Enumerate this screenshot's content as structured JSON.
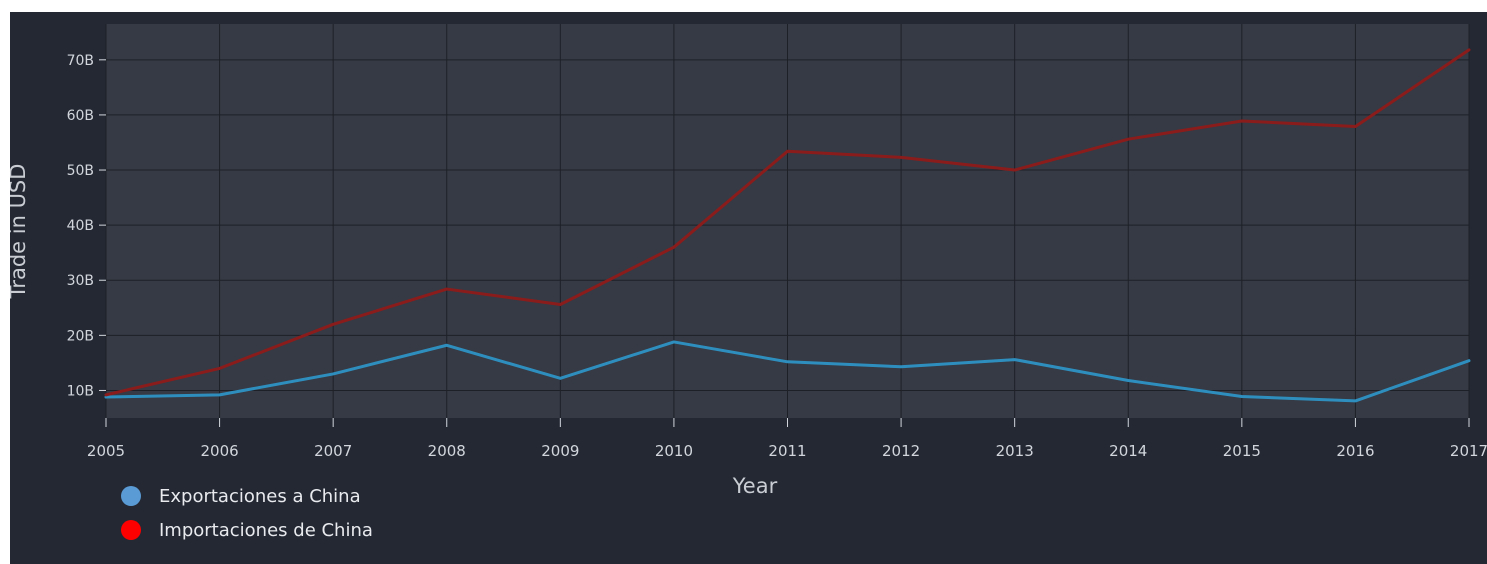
{
  "chart_data": {
    "type": "line",
    "title": "",
    "xlabel": "Year",
    "ylabel": "Trade in USD",
    "x": [
      2005,
      2006,
      2007,
      2008,
      2009,
      2010,
      2011,
      2012,
      2013,
      2014,
      2015,
      2016,
      2017
    ],
    "x_tick_labels": [
      "2005",
      "2006",
      "2007",
      "2008",
      "2009",
      "2010",
      "2011",
      "2012",
      "2013",
      "2014",
      "2015",
      "2016",
      "2017"
    ],
    "y_ticks": [
      10,
      20,
      30,
      40,
      50,
      60,
      70
    ],
    "y_tick_labels": [
      "10B",
      "20B",
      "30B",
      "40B",
      "50B",
      "60B",
      "70B"
    ],
    "ylim": [
      5,
      76.5
    ],
    "grid": true,
    "legend_position": "bottom-left",
    "series": [
      {
        "name": "Exportaciones a China",
        "color": "#2e8fbf",
        "legend_color": "#5b9bd5",
        "values": [
          8.8,
          9.2,
          13.0,
          18.2,
          12.2,
          18.8,
          15.2,
          14.3,
          15.6,
          11.8,
          8.9,
          8.1,
          15.4
        ]
      },
      {
        "name": "Importaciones de China",
        "color": "#8b1c1c",
        "legend_color": "#ff0000",
        "values": [
          9.2,
          14.0,
          22.0,
          28.4,
          25.6,
          36.0,
          53.4,
          52.3,
          50.0,
          55.6,
          58.9,
          57.9,
          71.8
        ]
      }
    ]
  },
  "colors": {
    "background": "#232833",
    "plot_area": "#363a44",
    "grid": "#1d2027",
    "text": "#d2d6dc"
  }
}
